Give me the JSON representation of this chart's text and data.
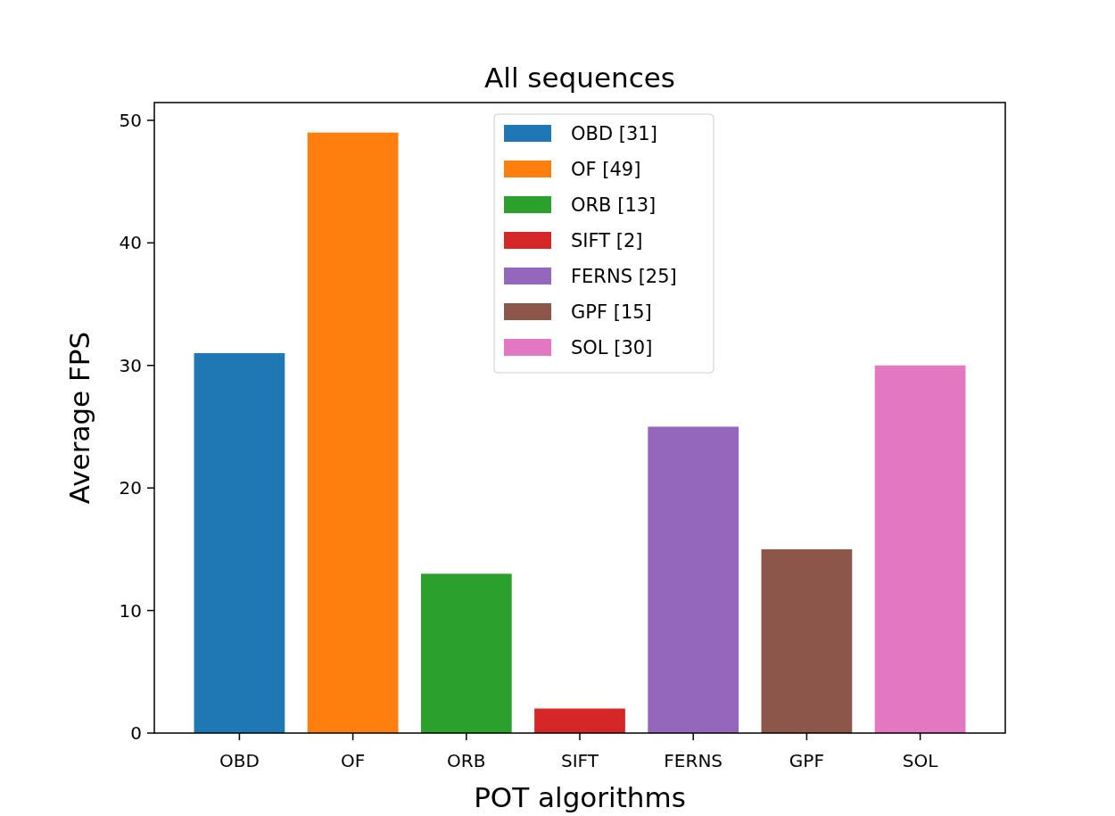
{
  "chart_data": {
    "type": "bar",
    "title": "All sequences",
    "xlabel": "POT algorithms",
    "ylabel": "Average FPS",
    "categories": [
      "OBD",
      "OF",
      "ORB",
      "SIFT",
      "FERNS",
      "GPF",
      "SOL"
    ],
    "series": [
      {
        "name": "OBD [31]",
        "color": "#1f77b4",
        "values": [
          31,
          null,
          null,
          null,
          null,
          null,
          null
        ]
      },
      {
        "name": "OF [49]",
        "color": "#ff7f0e",
        "values": [
          null,
          49,
          null,
          null,
          null,
          null,
          null
        ]
      },
      {
        "name": "ORB [13]",
        "color": "#2ca02c",
        "values": [
          null,
          null,
          13,
          null,
          null,
          null,
          null
        ]
      },
      {
        "name": "SIFT [2]",
        "color": "#d62728",
        "values": [
          null,
          null,
          null,
          2,
          null,
          null,
          null
        ]
      },
      {
        "name": "FERNS [25]",
        "color": "#9467bd",
        "values": [
          null,
          null,
          null,
          null,
          25,
          null,
          null
        ]
      },
      {
        "name": "GPF [15]",
        "color": "#8c564b",
        "values": [
          null,
          null,
          null,
          null,
          null,
          15,
          null
        ]
      },
      {
        "name": "SOL [30]",
        "color": "#e377c2",
        "values": [
          null,
          null,
          null,
          null,
          null,
          null,
          30
        ]
      }
    ],
    "ylim": [
      0,
      51.45
    ],
    "yticks": [
      0,
      10,
      20,
      30,
      40,
      50
    ],
    "grid": false,
    "legend": "top"
  }
}
